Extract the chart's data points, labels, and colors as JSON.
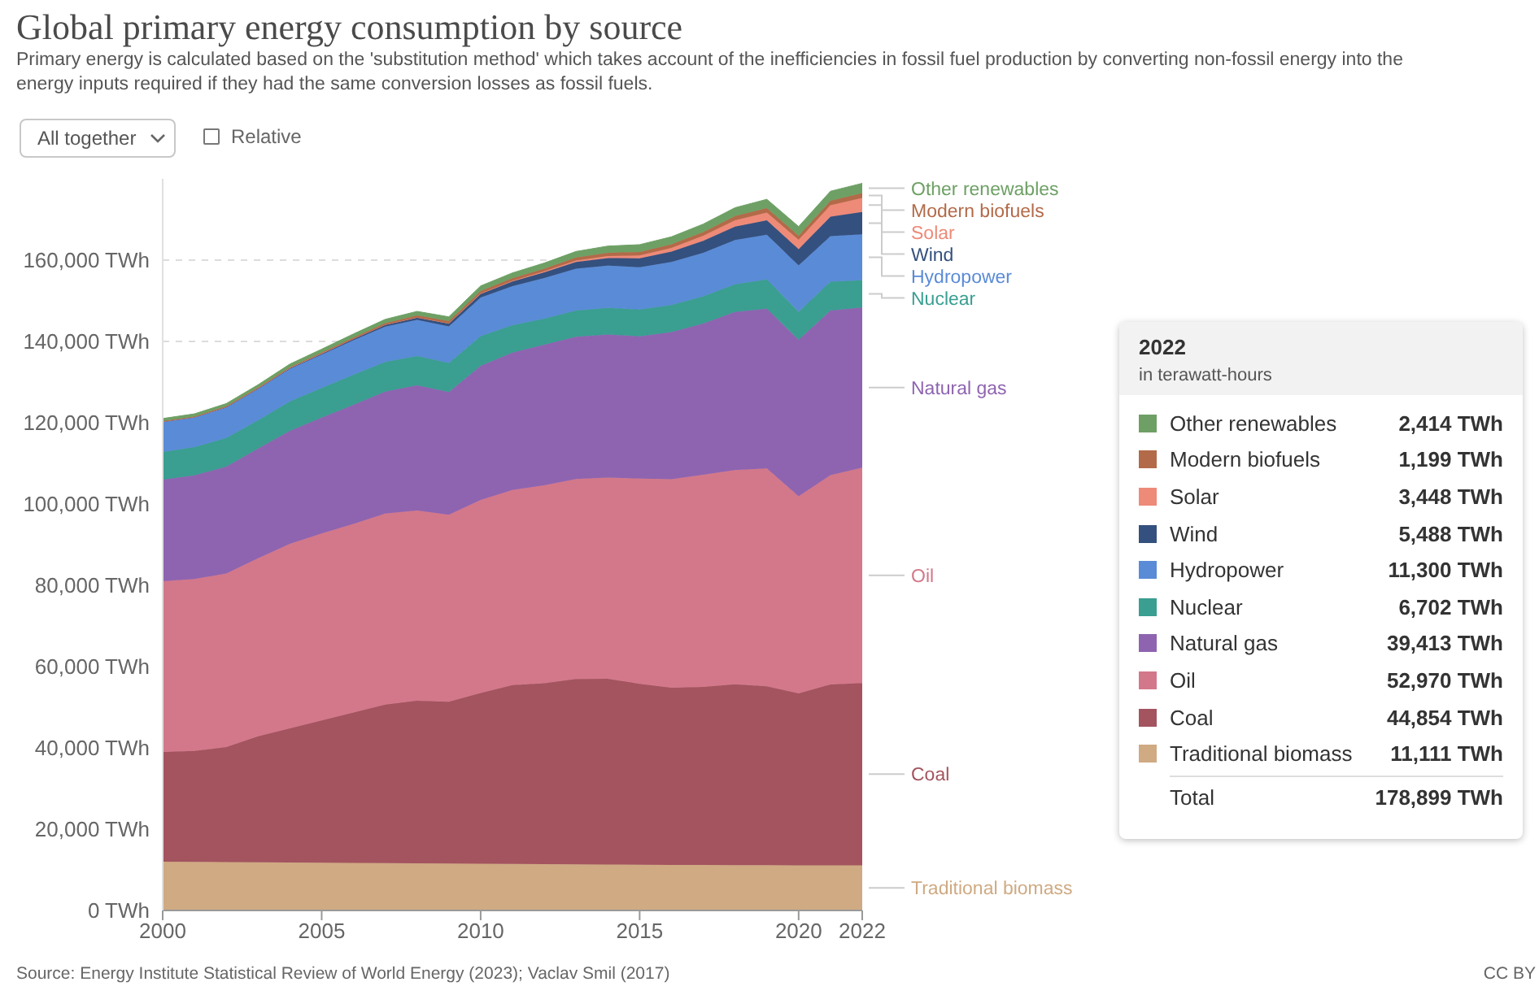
{
  "chart_data": {
    "type": "area",
    "stacked": true,
    "title": "Global primary energy consumption by source",
    "subtitle": "Primary energy is calculated based on the 'substitution method' which takes account of the inefficiencies in fossil fuel production by converting non-fossil energy into the energy inputs required if they had the same conversion losses as fossil fuels.",
    "x": [
      2000,
      2001,
      2002,
      2003,
      2004,
      2005,
      2006,
      2007,
      2008,
      2009,
      2010,
      2011,
      2012,
      2013,
      2014,
      2015,
      2016,
      2017,
      2018,
      2019,
      2020,
      2021,
      2022
    ],
    "xlim": [
      2000,
      2022
    ],
    "xticks": [
      2000,
      2005,
      2010,
      2015,
      2020,
      2022
    ],
    "ylim": [
      0,
      180000
    ],
    "yticks": [
      {
        "value": 0,
        "label": "0 TWh"
      },
      {
        "value": 20000,
        "label": "20,000 TWh"
      },
      {
        "value": 40000,
        "label": "40,000 TWh"
      },
      {
        "value": 60000,
        "label": "60,000 TWh"
      },
      {
        "value": 80000,
        "label": "80,000 TWh"
      },
      {
        "value": 100000,
        "label": "100,000 TWh"
      },
      {
        "value": 120000,
        "label": "120,000 TWh"
      },
      {
        "value": 140000,
        "label": "140,000 TWh"
      },
      {
        "value": 160000,
        "label": "160,000 TWh"
      }
    ],
    "grid": "y",
    "legend": "right",
    "series": [
      {
        "name": "Traditional biomass",
        "color": "#cfaa83",
        "values": [
          12000,
          11950,
          11900,
          11850,
          11800,
          11750,
          11700,
          11650,
          11600,
          11550,
          11500,
          11450,
          11400,
          11350,
          11300,
          11250,
          11200,
          11200,
          11150,
          11150,
          11100,
          11100,
          11111
        ]
      },
      {
        "name": "Coal",
        "color": "#a3545f",
        "values": [
          27000,
          27300,
          28300,
          31000,
          33000,
          35000,
          37000,
          39000,
          40000,
          39800,
          42000,
          44000,
          44500,
          45600,
          45700,
          44500,
          43600,
          43800,
          44500,
          44000,
          42300,
          44500,
          44854
        ]
      },
      {
        "name": "Oil",
        "color": "#d3788a",
        "values": [
          42000,
          42300,
          42700,
          43800,
          45400,
          46000,
          46400,
          47000,
          46800,
          46000,
          47500,
          48000,
          48700,
          49200,
          49500,
          50500,
          51300,
          52200,
          52700,
          53600,
          48500,
          51500,
          52970
        ]
      },
      {
        "name": "Natural gas",
        "color": "#8e64b0",
        "values": [
          25000,
          25500,
          26300,
          27000,
          27800,
          28500,
          29300,
          30000,
          30800,
          30200,
          33000,
          33800,
          34600,
          35000,
          35200,
          35000,
          36200,
          37200,
          38900,
          39300,
          38500,
          40500,
          39413
        ]
      },
      {
        "name": "Nuclear",
        "color": "#3a9e91",
        "values": [
          6800,
          6950,
          7050,
          6950,
          7250,
          7300,
          7400,
          7300,
          7200,
          7150,
          7300,
          6750,
          6400,
          6450,
          6550,
          6600,
          6650,
          6700,
          6800,
          7200,
          6900,
          7100,
          6702
        ]
      },
      {
        "name": "Hydropower",
        "color": "#5a8bd6",
        "values": [
          7400,
          7300,
          7500,
          7700,
          8000,
          8200,
          8500,
          8700,
          8900,
          9000,
          9500,
          9600,
          10000,
          10300,
          10400,
          10400,
          10600,
          10700,
          10900,
          11000,
          11400,
          11200,
          11300
        ]
      },
      {
        "name": "Wind",
        "color": "#34507e",
        "values": [
          80,
          100,
          140,
          170,
          220,
          270,
          350,
          450,
          580,
          720,
          890,
          1150,
          1380,
          1660,
          1860,
          2200,
          2550,
          2960,
          3300,
          3540,
          4000,
          4800,
          5488
        ]
      },
      {
        "name": "Solar",
        "color": "#ee8a78",
        "values": [
          3,
          4,
          5,
          6,
          7,
          10,
          15,
          20,
          35,
          55,
          85,
          170,
          260,
          350,
          500,
          690,
          910,
          1230,
          1550,
          1900,
          2300,
          2800,
          3448
        ]
      },
      {
        "name": "Modern biofuels",
        "color": "#b36a48",
        "values": [
          110,
          120,
          140,
          160,
          190,
          220,
          280,
          370,
          480,
          530,
          640,
          640,
          650,
          720,
          800,
          870,
          880,
          930,
          1050,
          1100,
          1020,
          1100,
          1199
        ]
      },
      {
        "name": "Other renewables",
        "color": "#6ea065",
        "values": [
          640,
          660,
          680,
          700,
          760,
          850,
          900,
          950,
          1000,
          1050,
          1250,
          1300,
          1400,
          1500,
          1650,
          1800,
          1850,
          1950,
          2050,
          2180,
          2250,
          2350,
          2414
        ]
      }
    ],
    "annotations": [
      "All together",
      "Relative",
      "Source: Energy Institute Statistical Review of World Energy (2023); Vaclav Smil (2017)",
      "CC BY",
      "2022",
      "in terawatt-hours",
      "2,414 TWh",
      "1,199 TWh",
      "3,448 TWh",
      "5,488 TWh",
      "11,300 TWh",
      "6,702 TWh",
      "39,413 TWh",
      "52,970 TWh",
      "44,854 TWh",
      "11,111 TWh",
      "Total",
      "178,899 TWh"
    ]
  }
}
